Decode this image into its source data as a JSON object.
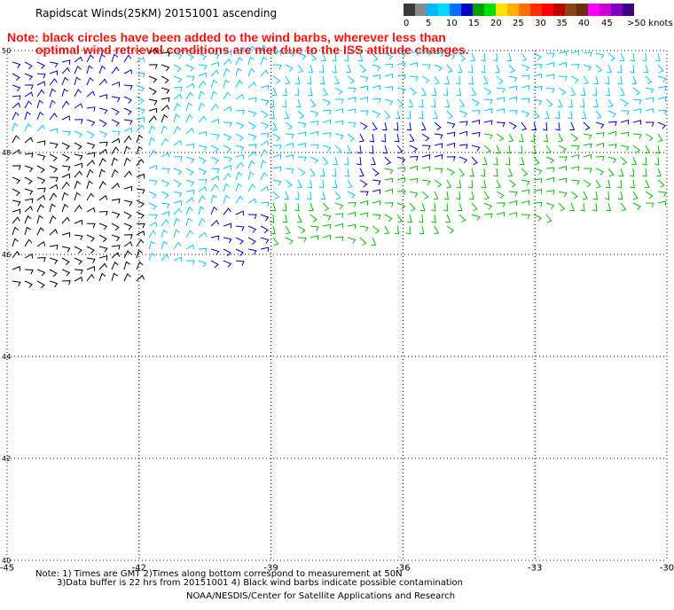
{
  "title": "Rapidscat Winds(25KM) 20151001 ascending",
  "note_line1": "Note: black circles have been added to the wind barbs, wherever less than",
  "note_line2": "optimal wind retrieval conditions are met due to the ISS attitude changes.",
  "colorbar": {
    "labels": [
      "0",
      "5",
      "10",
      "15",
      "20",
      "25",
      "30",
      "35",
      "40",
      "45",
      ">50 knots"
    ],
    "colors": [
      "#3a3a3a",
      "#8a8a8a",
      "#00b8ff",
      "#00d8ff",
      "#0070ff",
      "#0000c8",
      "#00a000",
      "#00e000",
      "#ffe000",
      "#ffb000",
      "#ff7000",
      "#ff3000",
      "#ff0000",
      "#c00000",
      "#8b4513",
      "#6b2f10",
      "#ff00ff",
      "#d000d0",
      "#8000c0",
      "#400080"
    ]
  },
  "map": {
    "lon_ticks": [
      "-45",
      "-42",
      "-39",
      "-36",
      "-33",
      "-30"
    ],
    "lat_ticks": [
      "50",
      "48",
      "46",
      "44",
      "42",
      "40"
    ],
    "lon_range": [
      -45,
      -30
    ],
    "lat_range": [
      40,
      50
    ],
    "grid": "dotted",
    "barb_colors": {
      "calm": "#000000",
      "light": "#00c8ff",
      "moderate": "#0000c8",
      "fresh": "#00c000"
    }
  },
  "footer_line1": "Note: 1) Times are GMT 2)Times along bottom correspond to measurement at 50N",
  "footer_line2": "3)Data buffer is 22 hrs from 20151001 4) Black wind barbs indicate possible contamination",
  "footer_line3": "NOAA/NESDIS/Center for Satellite Applications and Research"
}
